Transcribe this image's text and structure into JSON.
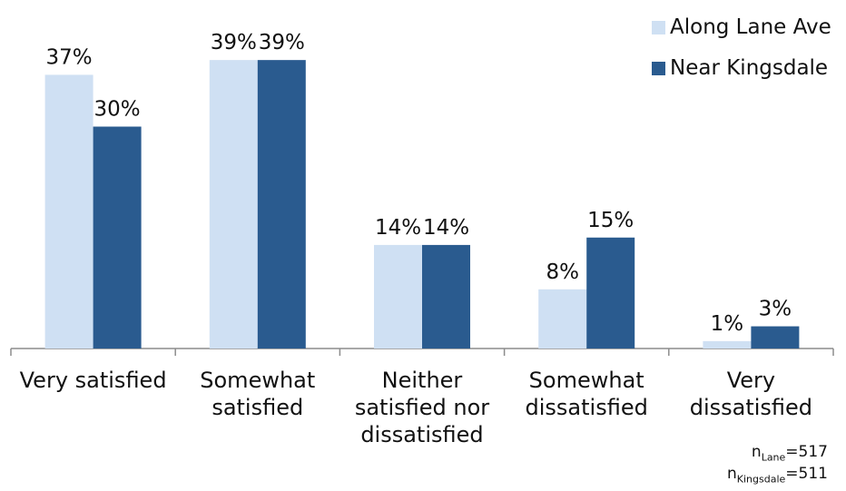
{
  "chart_data": {
    "type": "bar",
    "categories": [
      "Very satisfied",
      "Somewhat\nsatisfied",
      "Neither\nsatisfied nor\ndissatisfied",
      "Somewhat\ndissatisfied",
      "Very\ndissatisfied"
    ],
    "series": [
      {
        "name": "Along Lane Ave",
        "values": [
          37,
          39,
          14,
          8,
          1
        ],
        "labels": [
          "37%",
          "39%",
          "14%",
          "8%",
          "1%"
        ],
        "color": "#cfe0f3"
      },
      {
        "name": "Near Kingsdale",
        "values": [
          30,
          39,
          14,
          15,
          3
        ],
        "labels": [
          "30%",
          "39%",
          "14%",
          "15%",
          "3%"
        ],
        "color": "#2a5b8f"
      }
    ],
    "ylim": [
      0,
      40
    ],
    "grid": false,
    "legend": "top-right",
    "title": "",
    "xlabel": "",
    "ylabel": "",
    "axis_color": "#8c8c8c"
  },
  "notes": {
    "lane": {
      "prefix": "n",
      "sub": "Lane",
      "value": "=517"
    },
    "kingsdale": {
      "prefix": "n",
      "sub": "Kingsdale",
      "value": "=511"
    }
  }
}
